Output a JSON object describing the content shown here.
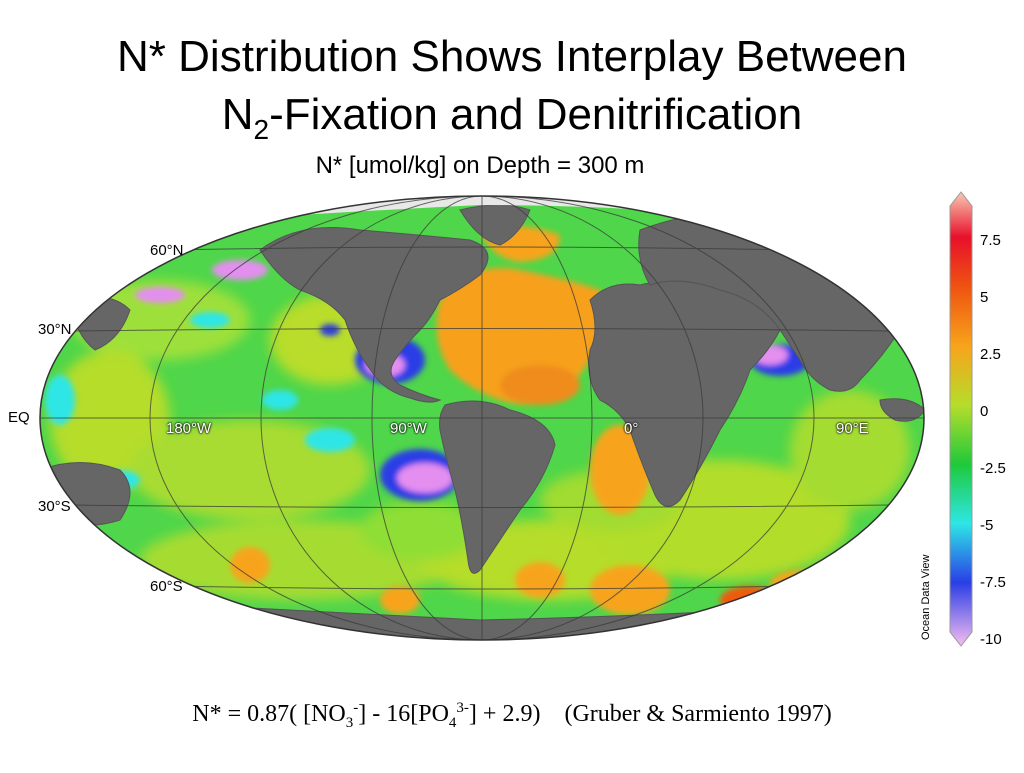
{
  "slide": {
    "title_line1": "N* Distribution Shows Interplay Between",
    "title_line2_prefix": "N",
    "title_line2_sub": "2",
    "title_line2_suffix": "-Fixation and Denitrification"
  },
  "map": {
    "title": "N* [umol/kg] on Depth = 300 m",
    "projection": "Mollweide",
    "latitude_labels": [
      "60°N",
      "30°N",
      "EQ",
      "30°S",
      "60°S"
    ],
    "longitude_labels": [
      "180°W",
      "90°W",
      "0°",
      "90°E"
    ],
    "colors": {
      "land": "#666666",
      "ice": "#e8e8e8",
      "graticule": "#3a3a3a"
    }
  },
  "colorbar": {
    "ticks": [
      "7.5",
      "5",
      "2.5",
      "0",
      "-2.5",
      "-5",
      "-7.5",
      "-10"
    ],
    "gradient_stops": [
      {
        "value": 9.5,
        "color": "#f9c9b4"
      },
      {
        "value": 7.5,
        "color": "#e8102a"
      },
      {
        "value": 5,
        "color": "#ef5a10"
      },
      {
        "value": 2.5,
        "color": "#f7a41c"
      },
      {
        "value": 0,
        "color": "#b5dd2c"
      },
      {
        "value": -2.5,
        "color": "#1fc93a"
      },
      {
        "value": -5,
        "color": "#2ee6e6"
      },
      {
        "value": -7.5,
        "color": "#2a3ee6"
      },
      {
        "value": -10,
        "color": "#f5bdf0"
      }
    ],
    "watermark": "Ocean Data View"
  },
  "formula": {
    "p1": "N* = 0.87( [NO",
    "s1": "3",
    "sup1": "-",
    "p2": "] - 16[PO",
    "s2": "4",
    "sup2": "3-",
    "p3": "] + 2.9)",
    "citation": "(Gruber & Sarmiento 1997)"
  }
}
